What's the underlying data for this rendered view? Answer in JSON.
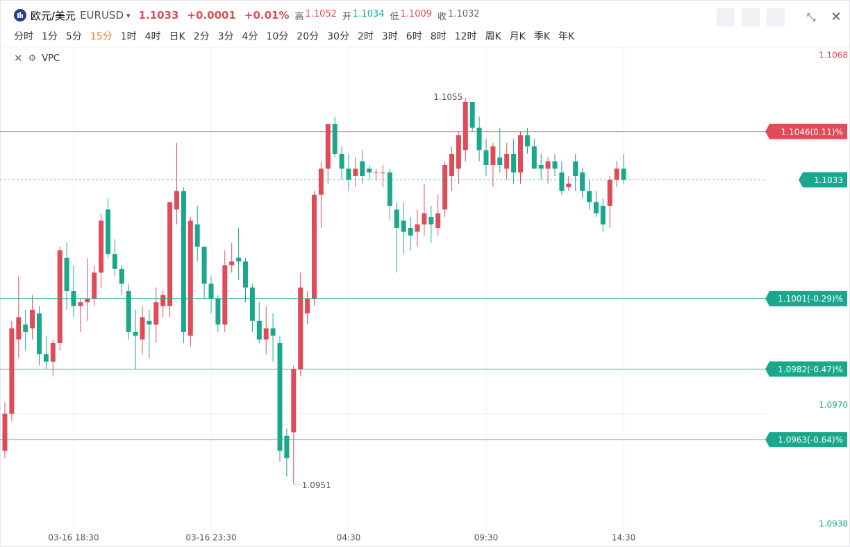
{
  "header": {
    "name": "欧元/美元",
    "symbol": "EURUSD",
    "price": "1.1033",
    "change": "+0.0001",
    "change_pct": "+0.01%",
    "quote_color": "#e04b58",
    "stats": [
      {
        "label": "高",
        "value": "1.1052",
        "color": "#e04b58"
      },
      {
        "label": "开",
        "value": "1.1034",
        "color": "#1aa88c"
      },
      {
        "label": "低",
        "value": "1.1009",
        "color": "#e04b58"
      },
      {
        "label": "收",
        "value": "1.1032",
        "color": "#666666"
      }
    ]
  },
  "toolbar": {
    "tabs": [
      "分时",
      "1分",
      "5分",
      "15分",
      "1时",
      "4时",
      "日K",
      "2分",
      "3分",
      "4分",
      "10分",
      "20分",
      "30分",
      "2时",
      "3时",
      "6时",
      "8时",
      "12时",
      "周K",
      "月K",
      "季K",
      "年K"
    ],
    "active": 3,
    "indicator": "VPC"
  },
  "chart_data": {
    "type": "candlestick",
    "up_color": "#e04b58",
    "down_color": "#1aa88c",
    "grid": true,
    "categories": [
      null,
      null,
      null,
      null,
      null,
      null,
      null,
      null,
      null,
      null,
      "03-16 18:30",
      null,
      null,
      null,
      null,
      null,
      null,
      null,
      null,
      null,
      null,
      null,
      null,
      null,
      null,
      null,
      null,
      null,
      null,
      null,
      "03-16 23:30",
      null,
      null,
      null,
      null,
      null,
      null,
      null,
      null,
      null,
      null,
      null,
      null,
      null,
      null,
      null,
      null,
      null,
      null,
      null,
      "04:30",
      null,
      null,
      null,
      null,
      null,
      null,
      null,
      null,
      null,
      null,
      null,
      null,
      null,
      null,
      null,
      null,
      null,
      null,
      null,
      "09:30",
      null,
      null,
      null,
      null,
      null,
      null,
      null,
      null,
      null,
      null,
      null,
      null,
      null,
      null,
      null,
      null,
      null,
      null,
      null,
      "14:30"
    ],
    "open": [
      1.096,
      1.097,
      1.099,
      1.0994,
      1.0993,
      1.0997,
      1.0986,
      1.0984,
      1.0989,
      1.1012,
      1.1003,
      1.0999,
      1.1,
      1.1001,
      1.1008,
      1.1025,
      1.1013,
      1.1009,
      1.1003,
      1.0992,
      1.099,
      1.0995,
      1.0994,
      1.0999,
      1.0999,
      1.1025,
      1.103,
      1.0991,
      1.1021,
      1.1015,
      1.1005,
      1.1001,
      1.0994,
      1.101,
      1.1012,
      1.1011,
      1.1004,
      1.0995,
      1.099,
      1.0993,
      1.0989,
      1.0964,
      1.0965,
      1.0982,
      1.0997,
      1.1001,
      1.1029,
      1.1036,
      1.1048,
      1.104,
      1.1036,
      1.1034,
      1.1038,
      1.1036,
      1.1035,
      1.1035,
      1.1035,
      1.1025,
      1.1022,
      1.102,
      1.1019,
      1.1021,
      1.1023,
      1.102,
      1.1025,
      1.1034,
      1.1036,
      1.1041,
      1.1054,
      1.1047,
      1.1041,
      1.1037,
      1.1039,
      1.1036,
      1.104,
      1.1035,
      1.1045,
      1.1042,
      1.1037,
      1.1036,
      1.1038,
      1.1035,
      1.1031,
      1.1038,
      1.1035,
      1.103,
      1.1027,
      1.1026,
      1.1026,
      1.1033,
      1.1036
    ],
    "high": [
      1.0973,
      1.0995,
      1.1007,
      1.0998,
      1.1002,
      1.0999,
      1.0991,
      1.099,
      1.1015,
      1.1016,
      1.101,
      1.1001,
      1.1012,
      1.101,
      1.1024,
      1.1028,
      1.1017,
      1.101,
      1.1005,
      1.0998,
      1.0999,
      1.0998,
      1.1004,
      1.1003,
      1.1027,
      1.1043,
      1.1031,
      1.1023,
      1.1026,
      1.1015,
      1.1007,
      1.1002,
      1.1014,
      1.1016,
      1.102,
      1.1012,
      1.1005,
      1.1,
      1.0999,
      1.0997,
      1.0991,
      1.0966,
      1.0983,
      1.1008,
      1.1003,
      1.103,
      1.1038,
      1.1048,
      1.105,
      1.1042,
      1.104,
      1.1039,
      1.1041,
      1.1037,
      1.1036,
      1.1037,
      1.1036,
      1.1027,
      1.1027,
      1.1023,
      1.1025,
      1.1032,
      1.1026,
      1.1029,
      1.1038,
      1.1042,
      1.1046,
      1.1055,
      1.1054,
      1.105,
      1.1044,
      1.1043,
      1.1047,
      1.1043,
      1.1044,
      1.1046,
      1.1047,
      1.1044,
      1.104,
      1.1039,
      1.104,
      1.1038,
      1.1034,
      1.104,
      1.1036,
      1.1033,
      1.103,
      1.1028,
      1.1034,
      1.1038,
      1.104
    ],
    "low": [
      1.0958,
      1.0968,
      1.0985,
      1.0987,
      1.099,
      1.0983,
      1.0982,
      1.098,
      1.0987,
      1.0998,
      1.0996,
      1.0992,
      1.0995,
      1.0999,
      1.1004,
      1.1012,
      1.1007,
      1.1002,
      1.099,
      1.0982,
      1.0986,
      1.0985,
      1.0989,
      1.0996,
      1.0996,
      1.1021,
      1.0989,
      1.0988,
      1.1011,
      1.1001,
      1.0997,
      1.0992,
      1.0992,
      1.1008,
      1.1006,
      1.1,
      1.0992,
      1.0989,
      1.0986,
      1.0984,
      1.0957,
      1.0953,
      1.0951,
      1.098,
      1.0994,
      1.0999,
      1.102,
      1.1032,
      1.1039,
      1.1033,
      1.103,
      1.1031,
      1.1032,
      1.1033,
      1.1033,
      1.1031,
      1.1022,
      1.1008,
      1.1013,
      1.1014,
      1.1015,
      1.1018,
      1.1016,
      1.1018,
      1.1023,
      1.103,
      1.1032,
      1.1038,
      1.1046,
      1.1038,
      1.1034,
      1.1031,
      1.1035,
      1.1033,
      1.1032,
      1.1032,
      1.104,
      1.1036,
      1.1033,
      1.1032,
      1.1034,
      1.1029,
      1.103,
      1.103,
      1.1028,
      1.1025,
      1.1023,
      1.1019,
      1.102,
      1.1031,
      1.1032
    ],
    "close": [
      1.097,
      1.0993,
      1.0996,
      1.0992,
      1.0998,
      1.0986,
      1.0984,
      1.0989,
      1.1014,
      1.1003,
      1.0999,
      1.1,
      1.1001,
      1.1008,
      1.1022,
      1.1013,
      1.1009,
      1.1005,
      1.0992,
      1.0991,
      1.0996,
      1.0994,
      1.1,
      1.1002,
      1.1027,
      1.103,
      1.0992,
      1.1022,
      1.1015,
      1.1005,
      1.1001,
      1.0994,
      1.101,
      1.1011,
      1.1011,
      1.1004,
      1.0995,
      1.099,
      1.0993,
      1.0991,
      1.096,
      1.0958,
      1.0982,
      1.1004,
      1.1001,
      1.1029,
      1.1036,
      1.1048,
      1.104,
      1.1036,
      1.1033,
      1.1036,
      1.1034,
      1.1035,
      1.1035,
      1.1035,
      1.1026,
      1.102,
      1.1019,
      1.1018,
      1.1021,
      1.1024,
      1.1021,
      1.1024,
      1.1037,
      1.104,
      1.1045,
      1.1054,
      1.1047,
      1.1041,
      1.1037,
      1.1042,
      1.1037,
      1.104,
      1.1035,
      1.1045,
      1.1042,
      1.1036,
      1.1036,
      1.1038,
      1.1036,
      1.103,
      1.1032,
      1.1034,
      1.103,
      1.1027,
      1.1024,
      1.1021,
      1.1033,
      1.1036,
      1.1033
    ],
    "ylim": [
      1.0938,
      1.1068
    ],
    "yticks": [
      1.0938,
      {
        "value": 1.097,
        "label": "1.0970"
      },
      1.1068
    ],
    "ytick_colors": [
      "#1aa88c",
      "#1aa88c",
      "#e04b58"
    ],
    "levels": [
      {
        "value": 1.1046,
        "label": "1.1046(0.11)%",
        "color": "#e04b58",
        "style": "solid"
      },
      {
        "value": 1.1033,
        "color": "#1aa88c",
        "style": "dashed"
      },
      {
        "value": 1.1001,
        "label": "1.1001(-0.29)%",
        "color": "#1aa88c",
        "style": "solid"
      },
      {
        "value": 1.0982,
        "label": "1.0982(-0.47)%",
        "color": "#1aa88c",
        "style": "solid"
      },
      {
        "value": 1.0963,
        "label": "1.0963(-0.64)%",
        "color": "#1aa88c",
        "style": "solid"
      }
    ]
  }
}
